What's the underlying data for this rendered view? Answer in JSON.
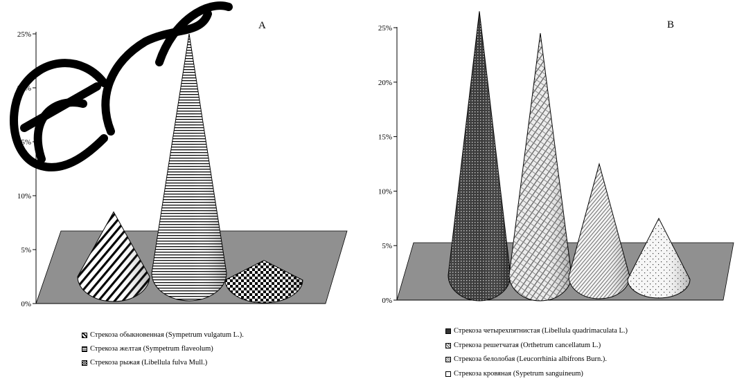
{
  "chart_data": [
    {
      "type": "bar",
      "shape": "cone",
      "title": "A",
      "yticks": [
        "0%",
        "5%",
        "10%",
        "15%",
        "20%",
        "25%"
      ],
      "ylim": [
        0,
        25
      ],
      "categories": [
        "Стрекоза обыкновенная (Sympetrum vulgatum L.).",
        "Стрекоза желтая (Sympetrum flaveolum)",
        "Стрекоза рыжая (Libellula fulva Mull.)"
      ],
      "values": [
        8.5,
        25,
        4
      ],
      "patterns": [
        "diag-thick",
        "hlines",
        "checker"
      ],
      "legend": [
        "Стрекоза обыкновенная (Sympetrum vulgatum L.).",
        "Стрекоза желтая (Sympetrum flaveolum)",
        "Стрекоза рыжая (Libellula fulva Mull.)"
      ]
    },
    {
      "type": "bar",
      "shape": "cone",
      "title": "B",
      "yticks": [
        "0%",
        "5%",
        "10%",
        "15%",
        "20%",
        "25%"
      ],
      "ylim": [
        0,
        25
      ],
      "categories": [
        "Стрекоза четырехпятнистая (Libellula quadrimaculata L.)",
        "Стрекоза решетчатая (Orthetrum cancellatum L.)",
        "Стрекоза белолобая (Leucorrhinia albifrons Burn.).",
        "Стрекоза кровяная (Sypetrum sanguineum)"
      ],
      "values": [
        26.5,
        24.5,
        12.5,
        7.5
      ],
      "patterns": [
        "dense-dots",
        "diag-cross",
        "diag-fine",
        "sparse-dots"
      ],
      "legend": [
        "Стрекоза четырехпятнистая (Libellula quadrimaculata L.)",
        "Стрекоза решетчатая (Orthetrum cancellatum L.)",
        "Стрекоза белолобая (Leucorrhinia albifrons Burn.).",
        "Стрекоза кровяная (Sypetrum sanguineum)"
      ]
    }
  ],
  "colors": {
    "floor": "#909090",
    "axis": "#000000",
    "watermark": "#000000"
  }
}
